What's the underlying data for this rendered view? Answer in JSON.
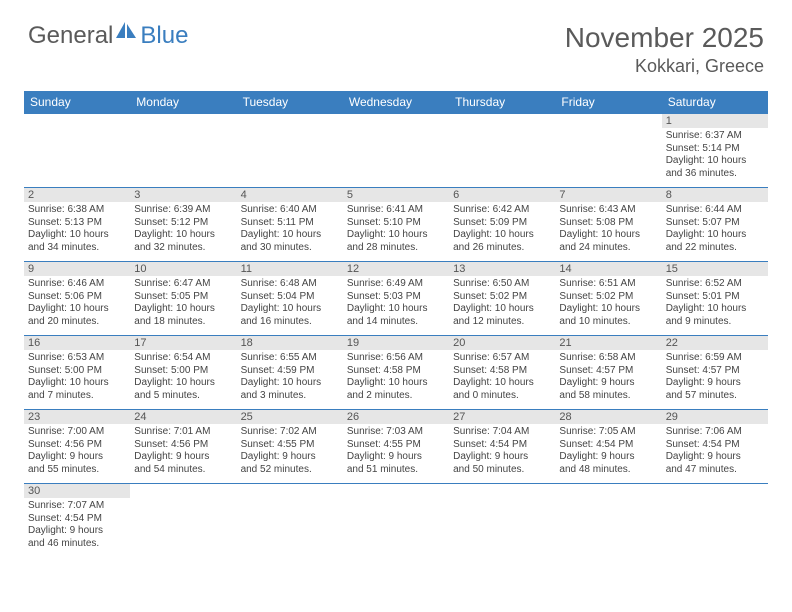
{
  "logo": {
    "general": "General",
    "blue": "Blue"
  },
  "title": "November 2025",
  "location": "Kokkari, Greece",
  "colors": {
    "accent": "#3a7ebf",
    "text": "#5a5a5a",
    "dayBg": "#e6e6e6"
  },
  "weekdays": [
    "Sunday",
    "Monday",
    "Tuesday",
    "Wednesday",
    "Thursday",
    "Friday",
    "Saturday"
  ],
  "weeks": [
    [
      {},
      {},
      {},
      {},
      {},
      {},
      {
        "n": "1",
        "sr": "6:37 AM",
        "ss": "5:14 PM",
        "dl": "10 hours and 36 minutes."
      }
    ],
    [
      {
        "n": "2",
        "sr": "6:38 AM",
        "ss": "5:13 PM",
        "dl": "10 hours and 34 minutes."
      },
      {
        "n": "3",
        "sr": "6:39 AM",
        "ss": "5:12 PM",
        "dl": "10 hours and 32 minutes."
      },
      {
        "n": "4",
        "sr": "6:40 AM",
        "ss": "5:11 PM",
        "dl": "10 hours and 30 minutes."
      },
      {
        "n": "5",
        "sr": "6:41 AM",
        "ss": "5:10 PM",
        "dl": "10 hours and 28 minutes."
      },
      {
        "n": "6",
        "sr": "6:42 AM",
        "ss": "5:09 PM",
        "dl": "10 hours and 26 minutes."
      },
      {
        "n": "7",
        "sr": "6:43 AM",
        "ss": "5:08 PM",
        "dl": "10 hours and 24 minutes."
      },
      {
        "n": "8",
        "sr": "6:44 AM",
        "ss": "5:07 PM",
        "dl": "10 hours and 22 minutes."
      }
    ],
    [
      {
        "n": "9",
        "sr": "6:46 AM",
        "ss": "5:06 PM",
        "dl": "10 hours and 20 minutes."
      },
      {
        "n": "10",
        "sr": "6:47 AM",
        "ss": "5:05 PM",
        "dl": "10 hours and 18 minutes."
      },
      {
        "n": "11",
        "sr": "6:48 AM",
        "ss": "5:04 PM",
        "dl": "10 hours and 16 minutes."
      },
      {
        "n": "12",
        "sr": "6:49 AM",
        "ss": "5:03 PM",
        "dl": "10 hours and 14 minutes."
      },
      {
        "n": "13",
        "sr": "6:50 AM",
        "ss": "5:02 PM",
        "dl": "10 hours and 12 minutes."
      },
      {
        "n": "14",
        "sr": "6:51 AM",
        "ss": "5:02 PM",
        "dl": "10 hours and 10 minutes."
      },
      {
        "n": "15",
        "sr": "6:52 AM",
        "ss": "5:01 PM",
        "dl": "10 hours and 9 minutes."
      }
    ],
    [
      {
        "n": "16",
        "sr": "6:53 AM",
        "ss": "5:00 PM",
        "dl": "10 hours and 7 minutes."
      },
      {
        "n": "17",
        "sr": "6:54 AM",
        "ss": "5:00 PM",
        "dl": "10 hours and 5 minutes."
      },
      {
        "n": "18",
        "sr": "6:55 AM",
        "ss": "4:59 PM",
        "dl": "10 hours and 3 minutes."
      },
      {
        "n": "19",
        "sr": "6:56 AM",
        "ss": "4:58 PM",
        "dl": "10 hours and 2 minutes."
      },
      {
        "n": "20",
        "sr": "6:57 AM",
        "ss": "4:58 PM",
        "dl": "10 hours and 0 minutes."
      },
      {
        "n": "21",
        "sr": "6:58 AM",
        "ss": "4:57 PM",
        "dl": "9 hours and 58 minutes."
      },
      {
        "n": "22",
        "sr": "6:59 AM",
        "ss": "4:57 PM",
        "dl": "9 hours and 57 minutes."
      }
    ],
    [
      {
        "n": "23",
        "sr": "7:00 AM",
        "ss": "4:56 PM",
        "dl": "9 hours and 55 minutes."
      },
      {
        "n": "24",
        "sr": "7:01 AM",
        "ss": "4:56 PM",
        "dl": "9 hours and 54 minutes."
      },
      {
        "n": "25",
        "sr": "7:02 AM",
        "ss": "4:55 PM",
        "dl": "9 hours and 52 minutes."
      },
      {
        "n": "26",
        "sr": "7:03 AM",
        "ss": "4:55 PM",
        "dl": "9 hours and 51 minutes."
      },
      {
        "n": "27",
        "sr": "7:04 AM",
        "ss": "4:54 PM",
        "dl": "9 hours and 50 minutes."
      },
      {
        "n": "28",
        "sr": "7:05 AM",
        "ss": "4:54 PM",
        "dl": "9 hours and 48 minutes."
      },
      {
        "n": "29",
        "sr": "7:06 AM",
        "ss": "4:54 PM",
        "dl": "9 hours and 47 minutes."
      }
    ],
    [
      {
        "n": "30",
        "sr": "7:07 AM",
        "ss": "4:54 PM",
        "dl": "9 hours and 46 minutes."
      },
      {},
      {},
      {},
      {},
      {},
      {}
    ]
  ],
  "labels": {
    "sunrise": "Sunrise:",
    "sunset": "Sunset:",
    "daylight": "Daylight:"
  }
}
